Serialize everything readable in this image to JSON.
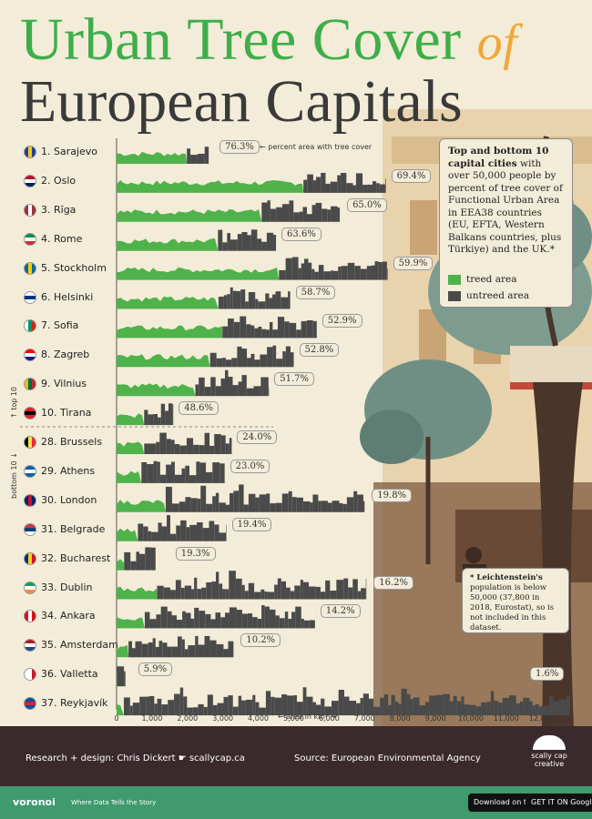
{
  "title": {
    "line1": "Urban Tree Cover",
    "accent": "of",
    "line2": "European Capitals"
  },
  "annotation": "percent area with tree cover",
  "side_labels": {
    "top": "top 10",
    "bottom": "bottom 10"
  },
  "info_box": {
    "bold": "Top and bottom 10 capital cities",
    "text": " with over 50,000 people by percent of tree cover of Functional Urban Area in EEA38 countries (EU, EFTA, Western Balkans countries, plus Türkiye) and the UK.*"
  },
  "legend": {
    "treed": "treed area",
    "untreed": "untreed area"
  },
  "note": {
    "bold": "* Leichtenstein's",
    "text": " population is below 50,000 (37,800 in 2018, Eurostat), so is not included in this dataset."
  },
  "axis_label": "← area in km² →",
  "footer": {
    "credit": "Research + design: Chris Dickert  ☛  scallycap.ca",
    "source": "Source: European Environmental Agency",
    "brand": "scally cap creative"
  },
  "bottom_bar": {
    "brand": "voronoi",
    "tagline": "Where Data Tells the Story",
    "app_store": "Download on the App Store",
    "google_play": "GET IT ON Google Play"
  },
  "colors": {
    "treed": "#4fb24a",
    "untreed": "#4a4a4a",
    "title_green": "#3fae4a",
    "accent": "#f0a83a",
    "background": "#f3ecd8"
  },
  "flags": {
    "Sarajevo": [
      "#1f3f99",
      "#f3c91d",
      "#1f3f99"
    ],
    "Oslo": [
      "#ba0c2f",
      "#ffffff",
      "#00205b"
    ],
    "Rīga": [
      "#9e3039",
      "#ffffff",
      "#9e3039"
    ],
    "Rome": [
      "#009246",
      "#ffffff",
      "#ce2b37"
    ],
    "Stockholm": [
      "#006aa7",
      "#fecc00",
      "#006aa7"
    ],
    "Helsinki": [
      "#ffffff",
      "#003580",
      "#ffffff"
    ],
    "Sofia": [
      "#ffffff",
      "#00966e",
      "#d62612"
    ],
    "Zagreb": [
      "#ff0000",
      "#ffffff",
      "#171796"
    ],
    "Vilnius": [
      "#fdb913",
      "#006a44",
      "#c1272d"
    ],
    "Tirana": [
      "#e41e20",
      "#000000",
      "#e41e20"
    ],
    "Brussels": [
      "#000000",
      "#fae042",
      "#ed2939"
    ],
    "Athens": [
      "#0d5eaf",
      "#ffffff",
      "#0d5eaf"
    ],
    "London": [
      "#012169",
      "#c8102e",
      "#012169"
    ],
    "Belgrade": [
      "#c6363c",
      "#0c4076",
      "#ffffff"
    ],
    "Bucharest": [
      "#002b7f",
      "#fcd116",
      "#ce1126"
    ],
    "Dublin": [
      "#169b62",
      "#ffffff",
      "#ff883e"
    ],
    "Ankara": [
      "#e30a17",
      "#ffffff",
      "#e30a17"
    ],
    "Amsterdam": [
      "#ae1c28",
      "#ffffff",
      "#21468b"
    ],
    "Valletta": [
      "#ffffff",
      "#ffffff",
      "#cf142b"
    ],
    "Reykjavík": [
      "#02529c",
      "#dc1e35",
      "#02529c"
    ]
  },
  "chart_data": {
    "type": "bar",
    "subtype": "stacked-horizontal",
    "xlabel": "area in km²",
    "xlim": [
      0,
      13000
    ],
    "x_ticks": [
      "0",
      "1,000",
      "2,000",
      "3,000",
      "4,000",
      "5,000",
      "6,000",
      "7,000",
      "8,000",
      "9,000",
      "10,000",
      "11,000",
      "12,000"
    ],
    "series": [
      {
        "name": "treed area"
      },
      {
        "name": "untreed area"
      }
    ],
    "cities": [
      {
        "rank": "1.",
        "city": "Sarajevo",
        "pct": 76.3,
        "pct_label": "76.3%",
        "area": 2600
      },
      {
        "rank": "2.",
        "city": "Oslo",
        "pct": 69.4,
        "pct_label": "69.4%",
        "area": 7600
      },
      {
        "rank": "3.",
        "city": "Rīga",
        "pct": 65.0,
        "pct_label": "65.0%",
        "area": 6300
      },
      {
        "rank": "4.",
        "city": "Rome",
        "pct": 63.6,
        "pct_label": "63.6%",
        "area": 4500
      },
      {
        "rank": "5.",
        "city": "Stockholm",
        "pct": 59.9,
        "pct_label": "59.9%",
        "area": 7650
      },
      {
        "rank": "6.",
        "city": "Helsinki",
        "pct": 58.7,
        "pct_label": "58.7%",
        "area": 4900
      },
      {
        "rank": "7.",
        "city": "Sofia",
        "pct": 52.9,
        "pct_label": "52.9%",
        "area": 5650
      },
      {
        "rank": "8.",
        "city": "Zagreb",
        "pct": 52.8,
        "pct_label": "52.8%",
        "area": 5000
      },
      {
        "rank": "9.",
        "city": "Vilnius",
        "pct": 51.7,
        "pct_label": "51.7%",
        "area": 4300
      },
      {
        "rank": "10.",
        "city": "Tirana",
        "pct": 48.6,
        "pct_label": "48.6%",
        "area": 1600
      },
      {
        "rank": "28.",
        "city": "Brussels",
        "pct": 24.0,
        "pct_label": "24.0%",
        "area": 3250
      },
      {
        "rank": "29.",
        "city": "Athens",
        "pct": 23.0,
        "pct_label": "23.0%",
        "area": 3050
      },
      {
        "rank": "30.",
        "city": "London",
        "pct": 19.8,
        "pct_label": "19.8%",
        "area": 7000
      },
      {
        "rank": "31.",
        "city": "Belgrade",
        "pct": 19.4,
        "pct_label": "19.4%",
        "area": 3100
      },
      {
        "rank": "32.",
        "city": "Bucharest",
        "pct": 19.3,
        "pct_label": "19.3%",
        "area": 1100
      },
      {
        "rank": "33.",
        "city": "Dublin",
        "pct": 16.2,
        "pct_label": "16.2%",
        "area": 7050
      },
      {
        "rank": "34.",
        "city": "Ankara",
        "pct": 14.2,
        "pct_label": "14.2%",
        "area": 5600
      },
      {
        "rank": "35.",
        "city": "Amsterdam",
        "pct": 10.2,
        "pct_label": "10.2%",
        "area": 3300
      },
      {
        "rank": "36.",
        "city": "Valletta",
        "pct": 5.9,
        "pct_label": "5.9%",
        "area": 250
      },
      {
        "rank": "37.",
        "city": "Reykjavík",
        "pct": 1.6,
        "pct_label": "1.6%",
        "area": 12800
      }
    ]
  }
}
